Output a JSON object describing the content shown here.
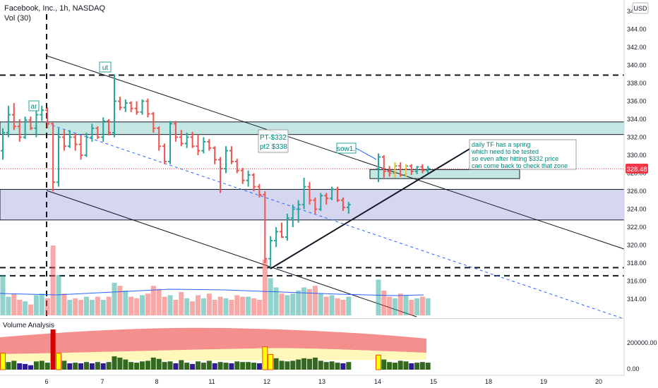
{
  "header": {
    "symbol_line": "Facebook, Inc., 1h, NASDAQ",
    "volume_line": "Vol (30)",
    "currency_badge": "USD"
  },
  "price_axis": {
    "ticks": [
      "346.00",
      "344.00",
      "342.00",
      "340.00",
      "338.00",
      "336.00",
      "334.00",
      "332.00",
      "330.00",
      "328.00",
      "326.00",
      "324.00",
      "322.00",
      "320.00",
      "318.00",
      "316.00",
      "314.00"
    ],
    "last_price": "328.48",
    "last_price_color": "#f23645"
  },
  "time_axis": {
    "ticks": [
      "6",
      "7",
      "8",
      "11",
      "12",
      "13",
      "14",
      "15",
      "18",
      "19",
      "20"
    ]
  },
  "annotations": {
    "ar": "ar",
    "ut": "ut",
    "sow1": "sow1.",
    "pt_line1": "PT-$332",
    "pt_line2": "pt2 $338",
    "note_line1": "daily TF has a spring",
    "note_line2": "which need to be tested",
    "note_line3": "so even after hitting $332 price",
    "note_line4": "can come back to check that zone"
  },
  "volume_panel": {
    "title": "Volume Analysis",
    "ticks": [
      "200000.00",
      "0.00"
    ]
  },
  "colors": {
    "up": "#26a69a",
    "down": "#ef5350",
    "zone_teal": "#b2dfdb",
    "zone_blue": "#c5cae9",
    "annotation_text": "#00897b"
  },
  "chart_data": {
    "type": "ohlc",
    "series_name": "Facebook, Inc., 1h, NASDAQ",
    "x_ticks": [
      "6",
      "7",
      "8",
      "11",
      "12",
      "13",
      "14",
      "15",
      "18",
      "19",
      "20"
    ],
    "y_range": [
      313,
      347
    ],
    "last_price": 328.48,
    "horizontal_levels_dashed": [
      338.9,
      317.5,
      316.6
    ],
    "zones": [
      {
        "low": 332.3,
        "high": 333.7,
        "color": "teal"
      },
      {
        "low": 322.8,
        "high": 326.2,
        "color": "blue"
      },
      {
        "low": 327.4,
        "high": 328.4,
        "color": "teal"
      }
    ],
    "candles": [
      {
        "o": 330.5,
        "h": 333.0,
        "l": 329.5,
        "c": 332.5
      },
      {
        "o": 332.5,
        "h": 335.5,
        "l": 332.0,
        "c": 334.5
      },
      {
        "o": 334.5,
        "h": 335.8,
        "l": 332.8,
        "c": 333.2
      },
      {
        "o": 333.2,
        "h": 334.0,
        "l": 331.5,
        "c": 332.0
      },
      {
        "o": 332.0,
        "h": 334.3,
        "l": 331.8,
        "c": 333.9
      },
      {
        "o": 333.9,
        "h": 334.3,
        "l": 332.8,
        "c": 333.0
      },
      {
        "o": 333.0,
        "h": 335.0,
        "l": 332.0,
        "c": 334.5
      },
      {
        "o": 334.5,
        "h": 335.5,
        "l": 333.8,
        "c": 335.0
      },
      {
        "o": 335.0,
        "h": 335.3,
        "l": 333.0,
        "c": 333.5
      },
      {
        "o": 333.5,
        "h": 333.6,
        "l": 326.0,
        "c": 327.0
      },
      {
        "o": 327.0,
        "h": 333.0,
        "l": 326.5,
        "c": 332.0
      },
      {
        "o": 332.0,
        "h": 332.8,
        "l": 330.5,
        "c": 331.0
      },
      {
        "o": 331.0,
        "h": 332.8,
        "l": 330.8,
        "c": 332.0
      },
      {
        "o": 332.0,
        "h": 332.4,
        "l": 330.5,
        "c": 331.2
      },
      {
        "o": 331.2,
        "h": 332.2,
        "l": 329.5,
        "c": 330.0
      },
      {
        "o": 330.0,
        "h": 332.5,
        "l": 329.8,
        "c": 332.0
      },
      {
        "o": 332.0,
        "h": 333.5,
        "l": 331.5,
        "c": 333.0
      },
      {
        "o": 333.0,
        "h": 333.2,
        "l": 331.8,
        "c": 332.0
      },
      {
        "o": 332.0,
        "h": 334.2,
        "l": 331.5,
        "c": 333.8
      },
      {
        "o": 333.8,
        "h": 334.0,
        "l": 332.2,
        "c": 332.5
      },
      {
        "o": 332.5,
        "h": 339.0,
        "l": 332.0,
        "c": 336.0
      },
      {
        "o": 336.0,
        "h": 336.5,
        "l": 335.0,
        "c": 335.3
      },
      {
        "o": 335.3,
        "h": 336.2,
        "l": 334.8,
        "c": 335.8
      },
      {
        "o": 335.8,
        "h": 336.0,
        "l": 334.8,
        "c": 335.2
      },
      {
        "o": 335.2,
        "h": 336.0,
        "l": 334.5,
        "c": 334.8
      },
      {
        "o": 334.8,
        "h": 336.2,
        "l": 334.5,
        "c": 336.0
      },
      {
        "o": 336.0,
        "h": 336.3,
        "l": 334.2,
        "c": 334.6
      },
      {
        "o": 334.6,
        "h": 334.8,
        "l": 332.5,
        "c": 333.0
      },
      {
        "o": 333.0,
        "h": 333.2,
        "l": 330.5,
        "c": 331.0
      },
      {
        "o": 331.0,
        "h": 331.3,
        "l": 329.0,
        "c": 329.3
      },
      {
        "o": 329.3,
        "h": 333.8,
        "l": 329.0,
        "c": 333.5
      },
      {
        "o": 333.5,
        "h": 333.8,
        "l": 331.5,
        "c": 332.0
      },
      {
        "o": 332.0,
        "h": 332.8,
        "l": 331.0,
        "c": 331.3
      },
      {
        "o": 331.3,
        "h": 332.5,
        "l": 330.8,
        "c": 332.0
      },
      {
        "o": 332.0,
        "h": 332.6,
        "l": 330.8,
        "c": 331.0
      },
      {
        "o": 331.0,
        "h": 332.3,
        "l": 330.0,
        "c": 330.5
      },
      {
        "o": 330.5,
        "h": 332.0,
        "l": 330.2,
        "c": 331.5
      },
      {
        "o": 331.5,
        "h": 331.8,
        "l": 330.5,
        "c": 330.8
      },
      {
        "o": 330.8,
        "h": 331.0,
        "l": 329.0,
        "c": 329.5
      },
      {
        "o": 329.5,
        "h": 329.8,
        "l": 325.8,
        "c": 328.5
      },
      {
        "o": 328.5,
        "h": 331.0,
        "l": 328.0,
        "c": 330.5
      },
      {
        "o": 330.5,
        "h": 331.0,
        "l": 329.0,
        "c": 329.3
      },
      {
        "o": 329.3,
        "h": 329.6,
        "l": 328.0,
        "c": 328.3
      },
      {
        "o": 328.3,
        "h": 328.6,
        "l": 326.8,
        "c": 327.2
      },
      {
        "o": 327.2,
        "h": 328.3,
        "l": 326.5,
        "c": 327.8
      },
      {
        "o": 327.8,
        "h": 328.0,
        "l": 326.0,
        "c": 326.5
      },
      {
        "o": 326.5,
        "h": 326.8,
        "l": 325.3,
        "c": 325.6
      },
      {
        "o": 325.6,
        "h": 326.0,
        "l": 318.0,
        "c": 318.5
      },
      {
        "o": 318.5,
        "h": 321.0,
        "l": 317.5,
        "c": 320.5
      },
      {
        "o": 320.5,
        "h": 322.0,
        "l": 319.8,
        "c": 321.5
      },
      {
        "o": 321.5,
        "h": 322.5,
        "l": 320.8,
        "c": 320.9
      },
      {
        "o": 320.9,
        "h": 323.5,
        "l": 320.5,
        "c": 323.0
      },
      {
        "o": 323.0,
        "h": 324.5,
        "l": 322.0,
        "c": 324.0
      },
      {
        "o": 324.0,
        "h": 325.0,
        "l": 322.5,
        "c": 324.5
      },
      {
        "o": 324.5,
        "h": 327.5,
        "l": 324.0,
        "c": 326.5
      },
      {
        "o": 326.5,
        "h": 327.0,
        "l": 324.5,
        "c": 325.0
      },
      {
        "o": 325.0,
        "h": 325.3,
        "l": 323.5,
        "c": 324.0
      },
      {
        "o": 324.0,
        "h": 325.8,
        "l": 323.8,
        "c": 325.5
      },
      {
        "o": 325.5,
        "h": 325.8,
        "l": 324.5,
        "c": 325.2
      },
      {
        "o": 325.2,
        "h": 326.5,
        "l": 325.0,
        "c": 326.2
      },
      {
        "o": 326.2,
        "h": 326.5,
        "l": 324.8,
        "c": 325.0
      },
      {
        "o": 325.0,
        "h": 325.3,
        "l": 323.8,
        "c": 324.2
      },
      {
        "o": 324.2,
        "h": 324.8,
        "l": 323.5,
        "c": 324.5
      },
      {
        "o": 328.5,
        "h": 330.2,
        "l": 327.0,
        "c": 329.8
      },
      {
        "o": 329.8,
        "h": 330.0,
        "l": 327.5,
        "c": 328.2
      },
      {
        "o": 328.2,
        "h": 328.8,
        "l": 327.6,
        "c": 328.0
      },
      {
        "o": 328.0,
        "h": 329.2,
        "l": 327.5,
        "c": 328.8
      },
      {
        "o": 328.8,
        "h": 329.2,
        "l": 327.6,
        "c": 327.8
      },
      {
        "o": 327.8,
        "h": 329.0,
        "l": 327.6,
        "c": 328.8
      },
      {
        "o": 328.8,
        "h": 329.0,
        "l": 327.8,
        "c": 328.2
      },
      {
        "o": 328.2,
        "h": 328.8,
        "l": 327.9,
        "c": 328.7
      },
      {
        "o": 328.7,
        "h": 329.0,
        "l": 328.0,
        "c": 328.3
      },
      {
        "o": 328.3,
        "h": 328.8,
        "l": 328.0,
        "c": 328.5
      }
    ],
    "volume": [
      2.6,
      1.2,
      1.4,
      1.0,
      0.9,
      0.7,
      1.3,
      1.4,
      1.1,
      4.5,
      2.6,
      1.4,
      1.0,
      1.1,
      1.0,
      1.2,
      1.0,
      1.2,
      1.0,
      1.2,
      2.1,
      1.9,
      1.6,
      1.2,
      1.1,
      1.3,
      1.4,
      1.9,
      1.7,
      1.2,
      1.3,
      1.0,
      1.5,
      1.1,
      0.9,
      1.3,
      1.1,
      1.4,
      1.0,
      1.2,
      1.1,
      1.0,
      1.3,
      1.2,
      1.2,
      1.1,
      1.0,
      3.6,
      2.4,
      1.8,
      1.4,
      1.3,
      1.4,
      1.6,
      1.8,
      1.7,
      1.9,
      1.4,
      1.2,
      1.3,
      1.1,
      1.0,
      1.2,
      2.3,
      1.6,
      1.2,
      1.1,
      1.4,
      1.3,
      1.0,
      1.1,
      1.2,
      1.1
    ]
  }
}
